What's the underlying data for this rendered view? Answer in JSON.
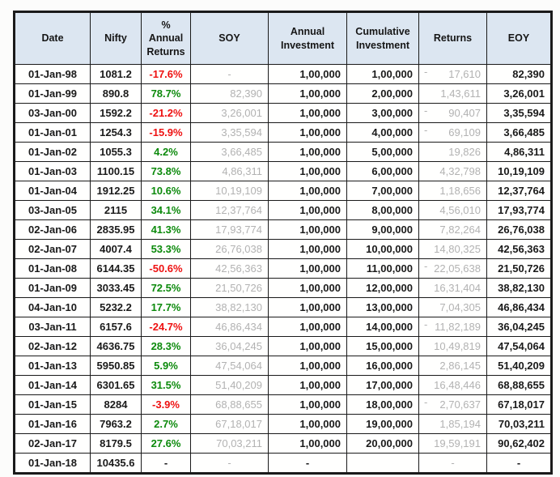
{
  "colors": {
    "header_bg": "#dce6f1",
    "border": "#1a1a1a",
    "text": "#1a1a1a",
    "negative_text": "#ee1111",
    "positive_text": "#0c8a0c",
    "muted_text": "#b2b2b2",
    "cell_bg": "#fffffe"
  },
  "chart_data": {
    "type": "table",
    "title": "",
    "columns": [
      {
        "key": "date",
        "label": "Date"
      },
      {
        "key": "nifty",
        "label": "Nifty"
      },
      {
        "key": "annual_return_pct",
        "label": "% Annual Returns"
      },
      {
        "key": "soy",
        "label": "SOY"
      },
      {
        "key": "annual_investment",
        "label": "Annual Investment"
      },
      {
        "key": "cumulative_investment",
        "label": "Cumulative Investment"
      },
      {
        "key": "returns",
        "label": "Returns"
      },
      {
        "key": "eoy",
        "label": "EOY"
      }
    ],
    "rows": [
      {
        "date": "01-Jan-98",
        "nifty": "1081.2",
        "annual_return_pct": "-17.6%",
        "soy": "-",
        "annual_investment": "1,00,000",
        "cumulative_investment": "1,00,000",
        "returns": "-17,610",
        "eoy": "82,390"
      },
      {
        "date": "01-Jan-99",
        "nifty": "890.8",
        "annual_return_pct": "78.7%",
        "soy": "82,390",
        "annual_investment": "1,00,000",
        "cumulative_investment": "2,00,000",
        "returns": "1,43,611",
        "eoy": "3,26,001"
      },
      {
        "date": "03-Jan-00",
        "nifty": "1592.2",
        "annual_return_pct": "-21.2%",
        "soy": "3,26,001",
        "annual_investment": "1,00,000",
        "cumulative_investment": "3,00,000",
        "returns": "-90,407",
        "eoy": "3,35,594"
      },
      {
        "date": "01-Jan-01",
        "nifty": "1254.3",
        "annual_return_pct": "-15.9%",
        "soy": "3,35,594",
        "annual_investment": "1,00,000",
        "cumulative_investment": "4,00,000",
        "returns": "-69,109",
        "eoy": "3,66,485"
      },
      {
        "date": "01-Jan-02",
        "nifty": "1055.3",
        "annual_return_pct": "4.2%",
        "soy": "3,66,485",
        "annual_investment": "1,00,000",
        "cumulative_investment": "5,00,000",
        "returns": "19,826",
        "eoy": "4,86,311"
      },
      {
        "date": "01-Jan-03",
        "nifty": "1100.15",
        "annual_return_pct": "73.8%",
        "soy": "4,86,311",
        "annual_investment": "1,00,000",
        "cumulative_investment": "6,00,000",
        "returns": "4,32,798",
        "eoy": "10,19,109"
      },
      {
        "date": "01-Jan-04",
        "nifty": "1912.25",
        "annual_return_pct": "10.6%",
        "soy": "10,19,109",
        "annual_investment": "1,00,000",
        "cumulative_investment": "7,00,000",
        "returns": "1,18,656",
        "eoy": "12,37,764"
      },
      {
        "date": "03-Jan-05",
        "nifty": "2115",
        "annual_return_pct": "34.1%",
        "soy": "12,37,764",
        "annual_investment": "1,00,000",
        "cumulative_investment": "8,00,000",
        "returns": "4,56,010",
        "eoy": "17,93,774"
      },
      {
        "date": "02-Jan-06",
        "nifty": "2835.95",
        "annual_return_pct": "41.3%",
        "soy": "17,93,774",
        "annual_investment": "1,00,000",
        "cumulative_investment": "9,00,000",
        "returns": "7,82,264",
        "eoy": "26,76,038"
      },
      {
        "date": "02-Jan-07",
        "nifty": "4007.4",
        "annual_return_pct": "53.3%",
        "soy": "26,76,038",
        "annual_investment": "1,00,000",
        "cumulative_investment": "10,00,000",
        "returns": "14,80,325",
        "eoy": "42,56,363"
      },
      {
        "date": "01-Jan-08",
        "nifty": "6144.35",
        "annual_return_pct": "-50.6%",
        "soy": "42,56,363",
        "annual_investment": "1,00,000",
        "cumulative_investment": "11,00,000",
        "returns": "-22,05,638",
        "eoy": "21,50,726"
      },
      {
        "date": "01-Jan-09",
        "nifty": "3033.45",
        "annual_return_pct": "72.5%",
        "soy": "21,50,726",
        "annual_investment": "1,00,000",
        "cumulative_investment": "12,00,000",
        "returns": "16,31,404",
        "eoy": "38,82,130"
      },
      {
        "date": "04-Jan-10",
        "nifty": "5232.2",
        "annual_return_pct": "17.7%",
        "soy": "38,82,130",
        "annual_investment": "1,00,000",
        "cumulative_investment": "13,00,000",
        "returns": "7,04,305",
        "eoy": "46,86,434"
      },
      {
        "date": "03-Jan-11",
        "nifty": "6157.6",
        "annual_return_pct": "-24.7%",
        "soy": "46,86,434",
        "annual_investment": "1,00,000",
        "cumulative_investment": "14,00,000",
        "returns": "-11,82,189",
        "eoy": "36,04,245"
      },
      {
        "date": "02-Jan-12",
        "nifty": "4636.75",
        "annual_return_pct": "28.3%",
        "soy": "36,04,245",
        "annual_investment": "1,00,000",
        "cumulative_investment": "15,00,000",
        "returns": "10,49,819",
        "eoy": "47,54,064"
      },
      {
        "date": "01-Jan-13",
        "nifty": "5950.85",
        "annual_return_pct": "5.9%",
        "soy": "47,54,064",
        "annual_investment": "1,00,000",
        "cumulative_investment": "16,00,000",
        "returns": "2,86,145",
        "eoy": "51,40,209"
      },
      {
        "date": "01-Jan-14",
        "nifty": "6301.65",
        "annual_return_pct": "31.5%",
        "soy": "51,40,209",
        "annual_investment": "1,00,000",
        "cumulative_investment": "17,00,000",
        "returns": "16,48,446",
        "eoy": "68,88,655"
      },
      {
        "date": "01-Jan-15",
        "nifty": "8284",
        "annual_return_pct": "-3.9%",
        "soy": "68,88,655",
        "annual_investment": "1,00,000",
        "cumulative_investment": "18,00,000",
        "returns": "-2,70,637",
        "eoy": "67,18,017"
      },
      {
        "date": "01-Jan-16",
        "nifty": "7963.2",
        "annual_return_pct": "2.7%",
        "soy": "67,18,017",
        "annual_investment": "1,00,000",
        "cumulative_investment": "19,00,000",
        "returns": "1,85,194",
        "eoy": "70,03,211"
      },
      {
        "date": "02-Jan-17",
        "nifty": "8179.5",
        "annual_return_pct": "27.6%",
        "soy": "70,03,211",
        "annual_investment": "1,00,000",
        "cumulative_investment": "20,00,000",
        "returns": "19,59,191",
        "eoy": "90,62,402"
      },
      {
        "date": "01-Jan-18",
        "nifty": "10435.6",
        "annual_return_pct": "-",
        "soy": "-",
        "annual_investment": "-",
        "cumulative_investment": "",
        "returns": "-",
        "eoy": "-"
      }
    ]
  }
}
